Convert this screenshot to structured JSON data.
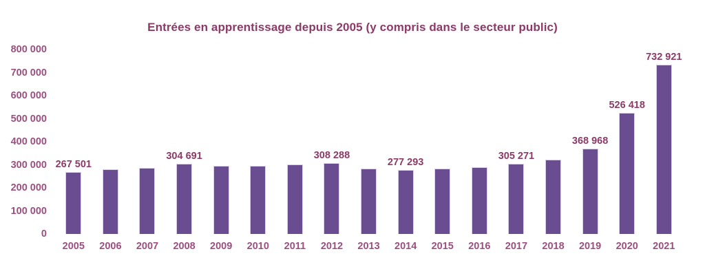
{
  "chart_data": {
    "type": "bar",
    "title": "Entrées en apprentissage depuis 2005 (y compris dans le secteur public)",
    "xlabel": "",
    "ylabel": "",
    "ylim": [
      0,
      800000
    ],
    "y_ticks": [
      "800 000",
      "700 000",
      "600 000",
      "500 000",
      "400 000",
      "300 000",
      "200 000",
      "100 000",
      "0"
    ],
    "grid": false,
    "legend": "none",
    "bar_color": "#6a4d91",
    "bar_border_color": "#dbcfec",
    "title_color": "#8c3a67",
    "axis_text_color": "#9b4f81",
    "categories": [
      "2005",
      "2006",
      "2007",
      "2008",
      "2009",
      "2010",
      "2011",
      "2012",
      "2013",
      "2014",
      "2015",
      "2016",
      "2017",
      "2018",
      "2019",
      "2020",
      "2021"
    ],
    "points": [
      {
        "year": "2005",
        "value": 267501,
        "label": "267 501",
        "estimated": false
      },
      {
        "year": "2006",
        "value": 282000,
        "label": null,
        "estimated": true
      },
      {
        "year": "2007",
        "value": 287000,
        "label": null,
        "estimated": true
      },
      {
        "year": "2008",
        "value": 304691,
        "label": "304 691",
        "estimated": false
      },
      {
        "year": "2009",
        "value": 295000,
        "label": null,
        "estimated": true
      },
      {
        "year": "2010",
        "value": 296000,
        "label": null,
        "estimated": true
      },
      {
        "year": "2011",
        "value": 303000,
        "label": null,
        "estimated": true
      },
      {
        "year": "2012",
        "value": 308288,
        "label": "308 288",
        "estimated": false
      },
      {
        "year": "2013",
        "value": 284000,
        "label": null,
        "estimated": true
      },
      {
        "year": "2014",
        "value": 277293,
        "label": "277 293",
        "estimated": false
      },
      {
        "year": "2015",
        "value": 284000,
        "label": null,
        "estimated": true
      },
      {
        "year": "2016",
        "value": 290000,
        "label": null,
        "estimated": true
      },
      {
        "year": "2017",
        "value": 305271,
        "label": "305 271",
        "estimated": false
      },
      {
        "year": "2018",
        "value": 321000,
        "label": null,
        "estimated": true
      },
      {
        "year": "2019",
        "value": 368968,
        "label": "368 968",
        "estimated": false
      },
      {
        "year": "2020",
        "value": 526418,
        "label": "526 418",
        "estimated": false
      },
      {
        "year": "2021",
        "value": 732921,
        "label": "732 921",
        "estimated": false
      }
    ]
  }
}
